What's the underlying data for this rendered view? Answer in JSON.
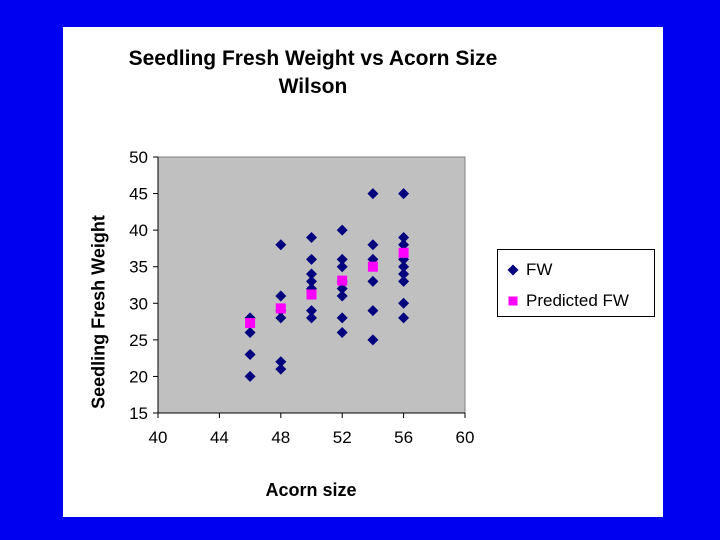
{
  "chart_data": {
    "type": "scatter",
    "title": "Seedling Fresh Weight vs Acorn Size",
    "subtitle": "Wilson",
    "xlabel": "Acorn size",
    "ylabel": "Seedling Fresh Weight",
    "xlim": [
      40,
      60
    ],
    "ylim": [
      15,
      50
    ],
    "xticks": [
      40,
      44,
      48,
      52,
      56,
      60
    ],
    "yticks": [
      15,
      20,
      25,
      30,
      35,
      40,
      45,
      50
    ],
    "grid": false,
    "legend_position": "right",
    "plot_background": "#c0c0c0",
    "series": [
      {
        "name": "FW",
        "marker": "diamond",
        "color": "#00007f",
        "points": [
          [
            46,
            28
          ],
          [
            46,
            26
          ],
          [
            46,
            23
          ],
          [
            46,
            20
          ],
          [
            48,
            38
          ],
          [
            48,
            31
          ],
          [
            48,
            29
          ],
          [
            48,
            28
          ],
          [
            48,
            22
          ],
          [
            48,
            21
          ],
          [
            50,
            39
          ],
          [
            50,
            36
          ],
          [
            50,
            34
          ],
          [
            50,
            33
          ],
          [
            50,
            32
          ],
          [
            50,
            29
          ],
          [
            50,
            28
          ],
          [
            52,
            40
          ],
          [
            52,
            36
          ],
          [
            52,
            35
          ],
          [
            52,
            33
          ],
          [
            52,
            32
          ],
          [
            52,
            31
          ],
          [
            52,
            28
          ],
          [
            52,
            26
          ],
          [
            54,
            45
          ],
          [
            54,
            38
          ],
          [
            54,
            36
          ],
          [
            54,
            33
          ],
          [
            54,
            29
          ],
          [
            54,
            25
          ],
          [
            56,
            45
          ],
          [
            56,
            39
          ],
          [
            56,
            38
          ],
          [
            56,
            36
          ],
          [
            56,
            35
          ],
          [
            56,
            34
          ],
          [
            56,
            33
          ],
          [
            56,
            30
          ],
          [
            56,
            28
          ]
        ]
      },
      {
        "name": "Predicted FW",
        "marker": "square",
        "color": "#ff00ff",
        "points": [
          [
            46,
            27.3
          ],
          [
            48,
            29.3
          ],
          [
            50,
            31.2
          ],
          [
            52,
            33.1
          ],
          [
            54,
            35.0
          ],
          [
            56,
            36.9
          ]
        ]
      }
    ]
  }
}
